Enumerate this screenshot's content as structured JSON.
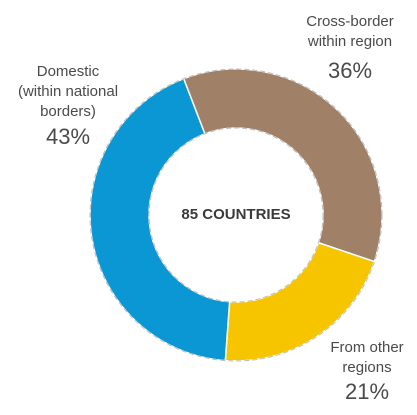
{
  "chart_data": {
    "type": "donut",
    "center_label": "85 COUNTRIES",
    "categories": [
      [
        "Cross-border",
        "within region"
      ],
      [
        "From other",
        "regions"
      ],
      [
        "Domestic",
        "(within national",
        "borders)"
      ]
    ],
    "values": [
      36,
      21,
      43
    ],
    "value_labels": [
      "36%",
      "21%",
      "43%"
    ],
    "colors": [
      "#a18068",
      "#f6c500",
      "#0b97d3"
    ]
  }
}
